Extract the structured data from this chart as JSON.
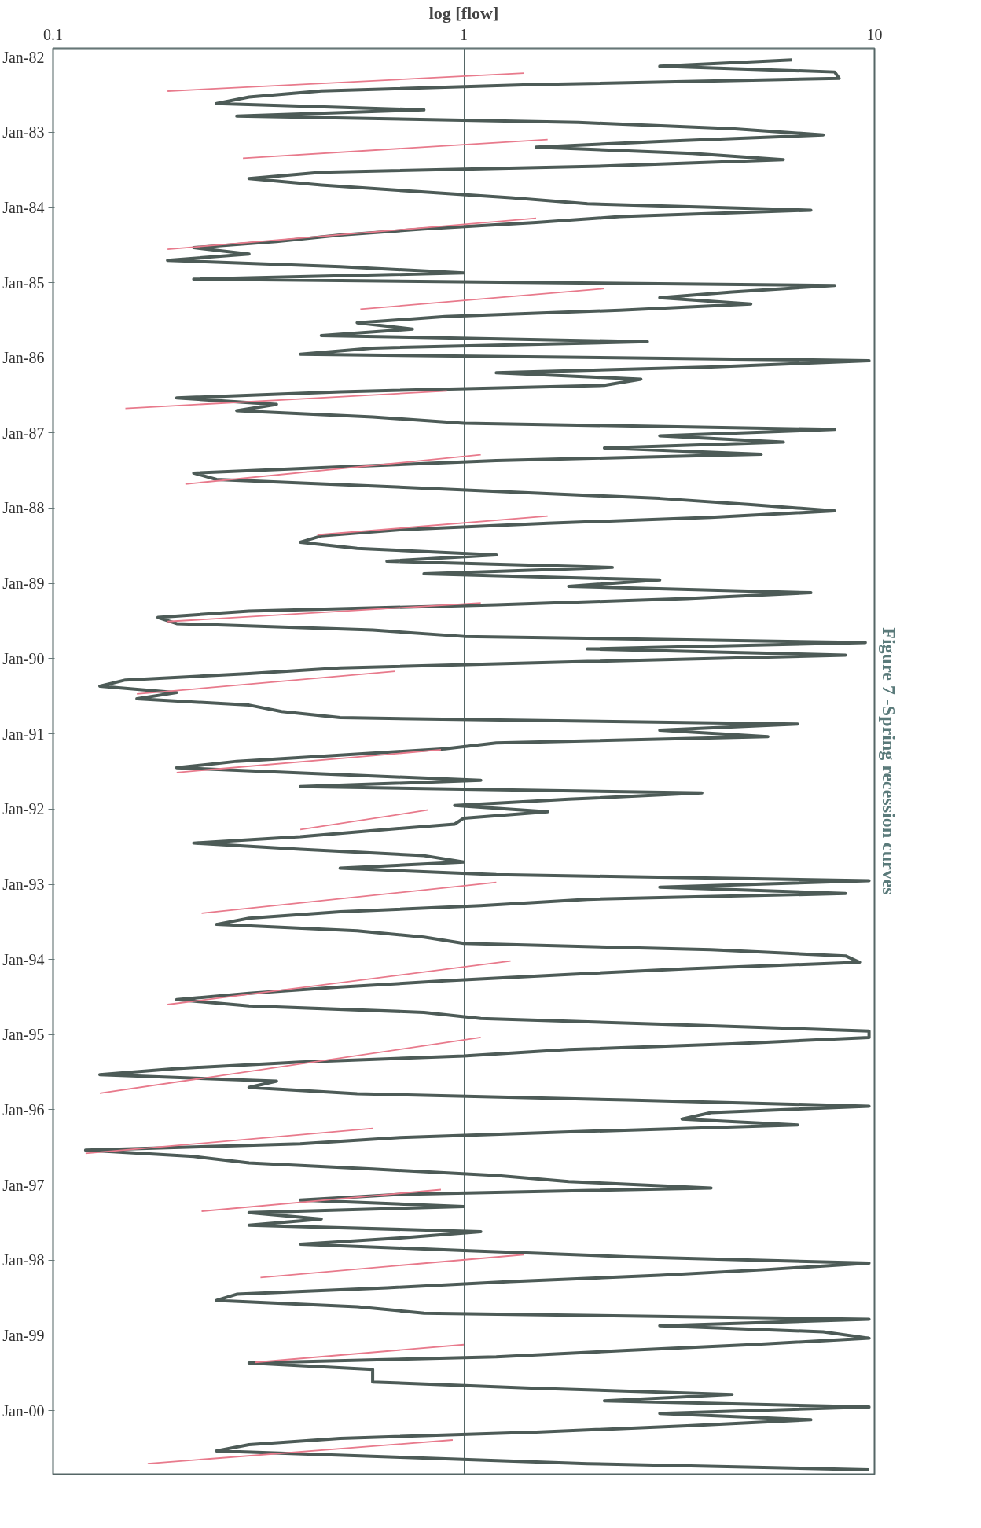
{
  "chart_data": {
    "type": "line",
    "orientation": "horizontal",
    "title": "Figure 7 -Spring recession curves",
    "xlabel": "log [flow]",
    "log": "x",
    "xlim": [
      0.1,
      10
    ],
    "xticks": [
      0.1,
      1,
      10
    ],
    "ylim": [
      "2000-11-05",
      "1981-11-20"
    ],
    "yticks": [
      {
        "value": "1982-01-01",
        "label": "Jan-82"
      },
      {
        "value": "1983-01-01",
        "label": "Jan-83"
      },
      {
        "value": "1984-01-01",
        "label": "Jan-84"
      },
      {
        "value": "1985-01-01",
        "label": "Jan-85"
      },
      {
        "value": "1986-01-01",
        "label": "Jan-86"
      },
      {
        "value": "1987-01-01",
        "label": "Jan-87"
      },
      {
        "value": "1988-01-01",
        "label": "Jan-88"
      },
      {
        "value": "1989-01-01",
        "label": "Jan-89"
      },
      {
        "value": "1990-01-01",
        "label": "Jan-90"
      },
      {
        "value": "1991-01-01",
        "label": "Jan-91"
      },
      {
        "value": "1992-01-01",
        "label": "Jan-92"
      },
      {
        "value": "1993-01-01",
        "label": "Jan-93"
      },
      {
        "value": "1994-01-01",
        "label": "Jan-94"
      },
      {
        "value": "1995-01-01",
        "label": "Jan-95"
      },
      {
        "value": "1996-01-01",
        "label": "Jan-96"
      },
      {
        "value": "1997-01-01",
        "label": "Jan-97"
      },
      {
        "value": "1998-01-01",
        "label": "Jan-98"
      },
      {
        "value": "1999-01-01",
        "label": "Jan-99"
      },
      {
        "value": "2000-01-01",
        "label": "Jan-00"
      }
    ],
    "grid": "x",
    "series": [
      {
        "color": "#4d5b57",
        "x": [
          "1982-01-15",
          "1982-02-15",
          "1982-03-15",
          "1982-04-15",
          "1982-05-15",
          "1982-06-15",
          "1982-07-15",
          "1982-08-15",
          "1982-09-15",
          "1982-10-15",
          "1982-11-15",
          "1982-12-15",
          "1983-01-15",
          "1983-02-15",
          "1983-03-15",
          "1983-04-15",
          "1983-05-15",
          "1983-06-15",
          "1983-07-15",
          "1983-08-15",
          "1983-09-15",
          "1983-10-15",
          "1983-11-15",
          "1983-12-15",
          "1984-01-15",
          "1984-02-15",
          "1984-03-15",
          "1984-04-15",
          "1984-05-15",
          "1984-06-15",
          "1984-07-15",
          "1984-08-15",
          "1984-09-15",
          "1984-10-15",
          "1984-11-15",
          "1984-12-15",
          "1985-01-15",
          "1985-02-15",
          "1985-03-15",
          "1985-04-15",
          "1985-05-15",
          "1985-06-15",
          "1985-07-15",
          "1985-08-15",
          "1985-09-15",
          "1985-10-15",
          "1985-11-15",
          "1985-12-15",
          "1986-01-15",
          "1986-02-15",
          "1986-03-15",
          "1986-04-15",
          "1986-05-15",
          "1986-06-15",
          "1986-07-15",
          "1986-08-15",
          "1986-09-15",
          "1986-10-15",
          "1986-11-15",
          "1986-12-15",
          "1987-01-15",
          "1987-02-15",
          "1987-03-15",
          "1987-04-15",
          "1987-05-15",
          "1987-06-15",
          "1987-07-15",
          "1987-08-15",
          "1987-09-15",
          "1987-10-15",
          "1987-11-15",
          "1987-12-15",
          "1988-01-15",
          "1988-02-15",
          "1988-03-15",
          "1988-04-15",
          "1988-05-15",
          "1988-06-15",
          "1988-07-15",
          "1988-08-15",
          "1988-09-15",
          "1988-10-15",
          "1988-11-15",
          "1988-12-15",
          "1989-01-15",
          "1989-02-15",
          "1989-03-15",
          "1989-04-15",
          "1989-05-15",
          "1989-06-15",
          "1989-07-15",
          "1989-08-15",
          "1989-09-15",
          "1989-10-15",
          "1989-11-15",
          "1989-12-15",
          "1990-01-15",
          "1990-02-15",
          "1990-03-15",
          "1990-04-15",
          "1990-05-15",
          "1990-06-15",
          "1990-07-15",
          "1990-08-15",
          "1990-09-15",
          "1990-10-15",
          "1990-11-15",
          "1990-12-15",
          "1991-01-15",
          "1991-02-15",
          "1991-03-15",
          "1991-04-15",
          "1991-05-15",
          "1991-06-15",
          "1991-07-15",
          "1991-08-15",
          "1991-09-15",
          "1991-10-15",
          "1991-11-15",
          "1991-12-15",
          "1992-01-15",
          "1992-02-15",
          "1992-03-15",
          "1992-04-15",
          "1992-05-15",
          "1992-06-15",
          "1992-07-15",
          "1992-08-15",
          "1992-09-15",
          "1992-10-15",
          "1992-11-15",
          "1992-12-15",
          "1993-01-15",
          "1993-02-15",
          "1993-03-15",
          "1993-04-15",
          "1993-05-15",
          "1993-06-15",
          "1993-07-15",
          "1993-08-15",
          "1993-09-15",
          "1993-10-15",
          "1993-11-15",
          "1993-12-15",
          "1994-01-15",
          "1994-02-15",
          "1994-03-15",
          "1994-04-15",
          "1994-05-15",
          "1994-06-15",
          "1994-07-15",
          "1994-08-15",
          "1994-09-15",
          "1994-10-15",
          "1994-11-15",
          "1994-12-15",
          "1995-01-15",
          "1995-02-15",
          "1995-03-15",
          "1995-04-15",
          "1995-05-15",
          "1995-06-15",
          "1995-07-15",
          "1995-08-15",
          "1995-09-15",
          "1995-10-15",
          "1995-11-15",
          "1995-12-15",
          "1996-01-15",
          "1996-02-15",
          "1996-03-15",
          "1996-04-15",
          "1996-05-15",
          "1996-06-15",
          "1996-07-15",
          "1996-08-15",
          "1996-09-15",
          "1996-10-15",
          "1996-11-15",
          "1996-12-15",
          "1997-01-15",
          "1997-02-15",
          "1997-03-15",
          "1997-04-15",
          "1997-05-15",
          "1997-06-15",
          "1997-07-15",
          "1997-08-15",
          "1997-09-15",
          "1997-10-15",
          "1997-11-15",
          "1997-12-15",
          "1998-01-15",
          "1998-02-15",
          "1998-03-15",
          "1998-04-15",
          "1998-05-15",
          "1998-06-15",
          "1998-07-15",
          "1998-08-15",
          "1998-09-15",
          "1998-10-15",
          "1998-11-15",
          "1998-12-15",
          "1999-01-15",
          "1999-02-15",
          "1999-03-15",
          "1999-04-15",
          "1999-05-15",
          "1999-06-15",
          "1999-07-15",
          "1999-08-15",
          "1999-09-15",
          "1999-10-15",
          "1999-11-15",
          "1999-12-15",
          "2000-01-15",
          "2000-02-15",
          "2000-03-15",
          "2000-04-15",
          "2000-05-15",
          "2000-06-15",
          "2000-07-15",
          "2000-08-15",
          "2000-09-15",
          "2000-10-15"
        ],
        "values": [
          6.3,
          3,
          8,
          8.2,
          1.5,
          0.45,
          0.3,
          0.25,
          0.8,
          0.28,
          1.9,
          4.5,
          7.5,
          3,
          1.5,
          3.6,
          6,
          2.2,
          0.45,
          0.3,
          0.45,
          0.75,
          1.3,
          2,
          7,
          2.4,
          1.5,
          0.8,
          0.5,
          0.35,
          0.22,
          0.3,
          0.19,
          0.5,
          1,
          0.22,
          8,
          4.5,
          3,
          5,
          2.4,
          0.9,
          0.55,
          0.75,
          0.45,
          2.8,
          0.6,
          0.4,
          9.7,
          4,
          1.2,
          2.7,
          2.2,
          0.5,
          0.2,
          0.35,
          0.28,
          0.6,
          1,
          8,
          3,
          6,
          2.2,
          5.3,
          1.2,
          0.5,
          0.22,
          0.25,
          0.6,
          1.3,
          3,
          5,
          8,
          4,
          1.6,
          0.7,
          0.45,
          0.4,
          0.55,
          1.2,
          0.65,
          2.3,
          0.8,
          3,
          1.8,
          7,
          3.5,
          1.2,
          0.3,
          0.18,
          0.2,
          0.6,
          1,
          9.5,
          2,
          8.5,
          2,
          0.5,
          0.3,
          0.15,
          0.13,
          0.2,
          0.16,
          0.3,
          0.36,
          0.5,
          6.5,
          3,
          5.5,
          1.2,
          0.9,
          0.5,
          0.28,
          0.2,
          0.45,
          1.1,
          0.4,
          3.8,
          1.8,
          0.95,
          1.6,
          1,
          0.95,
          0.6,
          0.4,
          0.22,
          0.4,
          0.8,
          1,
          0.5,
          1.2,
          9.7,
          3,
          8.5,
          2,
          1.1,
          0.5,
          0.3,
          0.25,
          0.55,
          0.8,
          1,
          4,
          8.5,
          9.2,
          3.5,
          1.8,
          0.9,
          0.5,
          0.3,
          0.2,
          0.3,
          0.8,
          1.1,
          3.5,
          9.7,
          9.7,
          4.5,
          1.8,
          1,
          0.4,
          0.2,
          0.13,
          0.35,
          0.3,
          0.55,
          2.5,
          9.7,
          4,
          3.4,
          6.5,
          2,
          0.7,
          0.4,
          0.12,
          0.22,
          0.3,
          0.6,
          1.2,
          1.8,
          4,
          0.7,
          0.4,
          1,
          0.3,
          0.45,
          0.3,
          1.1,
          0.7,
          0.4,
          1,
          2.5,
          9.7,
          5.5,
          3,
          1.3,
          0.65,
          0.28,
          0.25,
          0.55,
          0.8,
          9.7,
          3,
          7.5,
          9.7,
          5,
          2.5,
          1.2,
          0.3,
          0.6,
          0.6,
          0.6,
          1.5,
          4.5,
          2.2,
          9.7,
          3,
          7,
          3.5,
          1.5,
          0.5,
          0.3,
          0.25,
          0.7,
          2,
          9.7
        ]
      },
      {
        "type": "line",
        "color": "#e87a8c",
        "x": [
          "1982-03-21",
          "1982-06-16"
        ],
        "values": [
          1.4,
          0.19
        ]
      },
      {
        "type": "line",
        "color": "#e87a8c",
        "x": [
          "1983-02-06",
          "1983-05-08"
        ],
        "values": [
          1.6,
          0.29
        ]
      },
      {
        "type": "line",
        "color": "#e87a8c",
        "x": [
          "1984-02-23",
          "1984-07-23"
        ],
        "values": [
          1.5,
          0.19
        ]
      },
      {
        "type": "line",
        "color": "#e87a8c",
        "x": [
          "1985-01-30",
          "1985-05-10"
        ],
        "values": [
          2.2,
          0.56
        ]
      },
      {
        "type": "line",
        "color": "#e87a8c",
        "x": [
          "1986-06-11",
          "1986-09-04"
        ],
        "values": [
          0.91,
          0.15
        ]
      },
      {
        "type": "line",
        "color": "#e87a8c",
        "x": [
          "1987-04-17",
          "1987-09-06"
        ],
        "values": [
          1.1,
          0.21
        ]
      },
      {
        "type": "line",
        "color": "#e87a8c",
        "x": [
          "1988-02-09",
          "1988-05-10"
        ],
        "values": [
          1.6,
          0.44
        ]
      },
      {
        "type": "line",
        "color": "#e87a8c",
        "x": [
          "1989-04-06",
          "1989-07-05"
        ],
        "values": [
          1.1,
          0.19
        ]
      },
      {
        "type": "line",
        "color": "#e87a8c",
        "x": [
          "1990-03-04",
          "1990-06-22"
        ],
        "values": [
          0.68,
          0.16
        ]
      },
      {
        "type": "line",
        "color": "#e87a8c",
        "x": [
          "1991-03-20",
          "1991-07-08"
        ],
        "values": [
          0.88,
          0.2
        ]
      },
      {
        "type": "line",
        "color": "#e87a8c",
        "x": [
          "1992-01-06",
          "1992-04-10"
        ],
        "values": [
          0.82,
          0.4
        ]
      },
      {
        "type": "line",
        "color": "#e87a8c",
        "x": [
          "1992-12-23",
          "1993-05-22"
        ],
        "values": [
          1.2,
          0.23
        ]
      },
      {
        "type": "line",
        "color": "#e87a8c",
        "x": [
          "1994-01-09",
          "1994-08-08"
        ],
        "values": [
          1.3,
          0.19
        ]
      },
      {
        "type": "line",
        "color": "#e87a8c",
        "x": [
          "1995-01-15",
          "1995-10-13"
        ],
        "values": [
          1.1,
          0.13
        ]
      },
      {
        "type": "line",
        "color": "#e87a8c",
        "x": [
          "1996-04-01",
          "1996-07-31"
        ],
        "values": [
          0.6,
          0.12
        ]
      },
      {
        "type": "line",
        "color": "#e87a8c",
        "x": [
          "1997-01-23",
          "1997-05-08"
        ],
        "values": [
          0.88,
          0.23
        ]
      },
      {
        "type": "line",
        "color": "#e87a8c",
        "x": [
          "1997-12-05",
          "1998-03-26"
        ],
        "values": [
          1.4,
          0.32
        ]
      },
      {
        "type": "line",
        "color": "#e87a8c",
        "x": [
          "1999-02-15",
          "1999-05-12"
        ],
        "values": [
          1.0,
          0.31
        ]
      },
      {
        "type": "line",
        "color": "#e87a8c",
        "x": [
          "2000-05-23",
          "2000-09-15"
        ],
        "values": [
          0.94,
          0.17
        ]
      }
    ]
  }
}
